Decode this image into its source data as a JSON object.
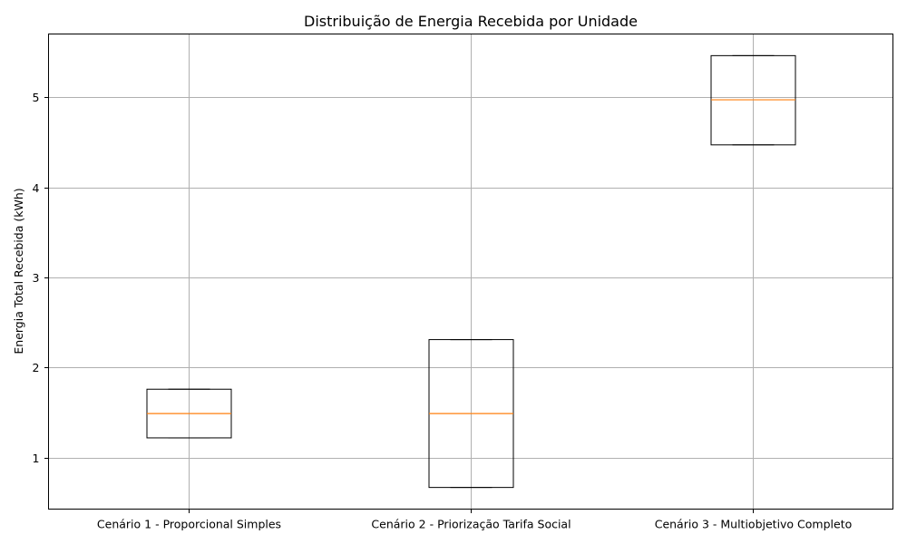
{
  "chart_data": {
    "type": "box",
    "title": "Distribuição de Energia Recebida por Unidade",
    "xlabel": "",
    "ylabel": "Energia Total Recebida (kWh)",
    "categories": [
      "Cenário 1 - Proporcional Simples",
      "Cenário 2 - Priorização Tarifa Social",
      "Cenário 3 - Multiobjetivo Completo"
    ],
    "boxes": [
      {
        "min": 1.22,
        "q1": 1.22,
        "median": 1.49,
        "q3": 1.76,
        "max": 1.76
      },
      {
        "min": 0.67,
        "q1": 0.67,
        "median": 1.49,
        "q3": 2.31,
        "max": 2.31
      },
      {
        "min": 4.47,
        "q1": 4.47,
        "median": 4.97,
        "q3": 5.46,
        "max": 5.46
      }
    ],
    "yticks": [
      "1",
      "2",
      "3",
      "4",
      "5"
    ],
    "ylim": [
      0.43,
      5.7
    ],
    "grid": true,
    "colors": {
      "box": "#000000",
      "median": "#ff7f0e",
      "grid": "#b0b0b0"
    }
  }
}
